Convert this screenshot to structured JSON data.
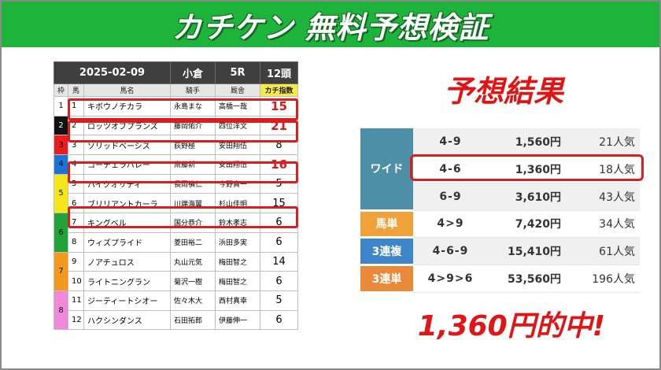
{
  "banner": {
    "title": "カチケン 無料予想検証"
  },
  "race": {
    "date": "2025-02-09",
    "venue": "小倉",
    "race_no": "5R",
    "field": "12頭",
    "columns": {
      "waku": "枠",
      "num": "馬",
      "horse": "馬名",
      "jockey": "騎手",
      "trainer": "厩舎",
      "score": "カチ指数"
    },
    "rows": [
      {
        "waku": "1",
        "num": "1",
        "horse": "キボウノチカラ",
        "jockey": "永島まな",
        "trainer": "高橋一哉",
        "score": "15"
      },
      {
        "waku": "2",
        "num": "2",
        "horse": "ロッツオブプランズ",
        "jockey": "藤岡佑介",
        "trainer": "四位洋文",
        "score": "21"
      },
      {
        "waku": "3",
        "num": "3",
        "horse": "ソリッドベーシス",
        "jockey": "荻野極",
        "trainer": "安田翔伍",
        "score": "8"
      },
      {
        "waku": "4",
        "num": "4",
        "horse": "コーチェラバレー",
        "jockey": "斎藤新",
        "trainer": "安田翔伍",
        "score": "16"
      },
      {
        "waku": "5",
        "num": "5",
        "horse": "ハイクオリティ",
        "jockey": "長岡禎仁",
        "trainer": "今野貞一",
        "score": "5"
      },
      {
        "num": "6",
        "horse": "ブリリアントカーラ",
        "jockey": "川端海翼",
        "trainer": "杉山佳明",
        "score": "15"
      },
      {
        "waku": "6",
        "num": "7",
        "horse": "キングベル",
        "jockey": "国分恭介",
        "trainer": "鈴木孝志",
        "score": "6"
      },
      {
        "num": "8",
        "horse": "ウィズプライド",
        "jockey": "菱田裕二",
        "trainer": "浜田多実",
        "score": "6"
      },
      {
        "waku": "7",
        "num": "9",
        "horse": "ノアチュロス",
        "jockey": "丸山元気",
        "trainer": "梅田智之",
        "score": "14"
      },
      {
        "num": "10",
        "horse": "ライトニングラン",
        "jockey": "菊沢一樹",
        "trainer": "梅田智之",
        "score": "6"
      },
      {
        "waku": "8",
        "num": "11",
        "horse": "ジーティートシオー",
        "jockey": "佐々木大",
        "trainer": "西村真幸",
        "score": "5"
      },
      {
        "num": "12",
        "horse": "ハクシンダンス",
        "jockey": "石田拓郎",
        "trainer": "伊藤伸一",
        "score": "6"
      }
    ],
    "waku_colors": [
      "#ffffff",
      "#111111",
      "#e81d1d",
      "#1a73d9",
      "#f5e61c",
      "#1fa33a",
      "#f39a1c",
      "#f08ad8"
    ]
  },
  "result": {
    "title": "予想結果",
    "wide_label": "ワイド",
    "wide": [
      {
        "combo": "4-9",
        "amount": "1,560円",
        "pop": "21人気"
      },
      {
        "combo": "4-6",
        "amount": "1,360円",
        "pop": "18人気"
      },
      {
        "combo": "6-9",
        "amount": "3,610円",
        "pop": "43人気"
      }
    ],
    "umatan": {
      "label": "馬単",
      "combo": "4>9",
      "amount": "7,420円",
      "pop": "34人気"
    },
    "sanrenpuku": {
      "label": "3連複",
      "combo": "4-6-9",
      "amount": "15,410円",
      "pop": "61人気"
    },
    "sanrentan": {
      "label": "3連単",
      "combo": "4>9>6",
      "amount": "53,560円",
      "pop": "196人気"
    },
    "bet_colors": {
      "wide": "#4e8fa8",
      "umatan": "#f0a23a",
      "sanrenpuku": "#3e86c9",
      "sanrentan": "#e88a3a"
    },
    "hit": "1,360円的中!"
  }
}
